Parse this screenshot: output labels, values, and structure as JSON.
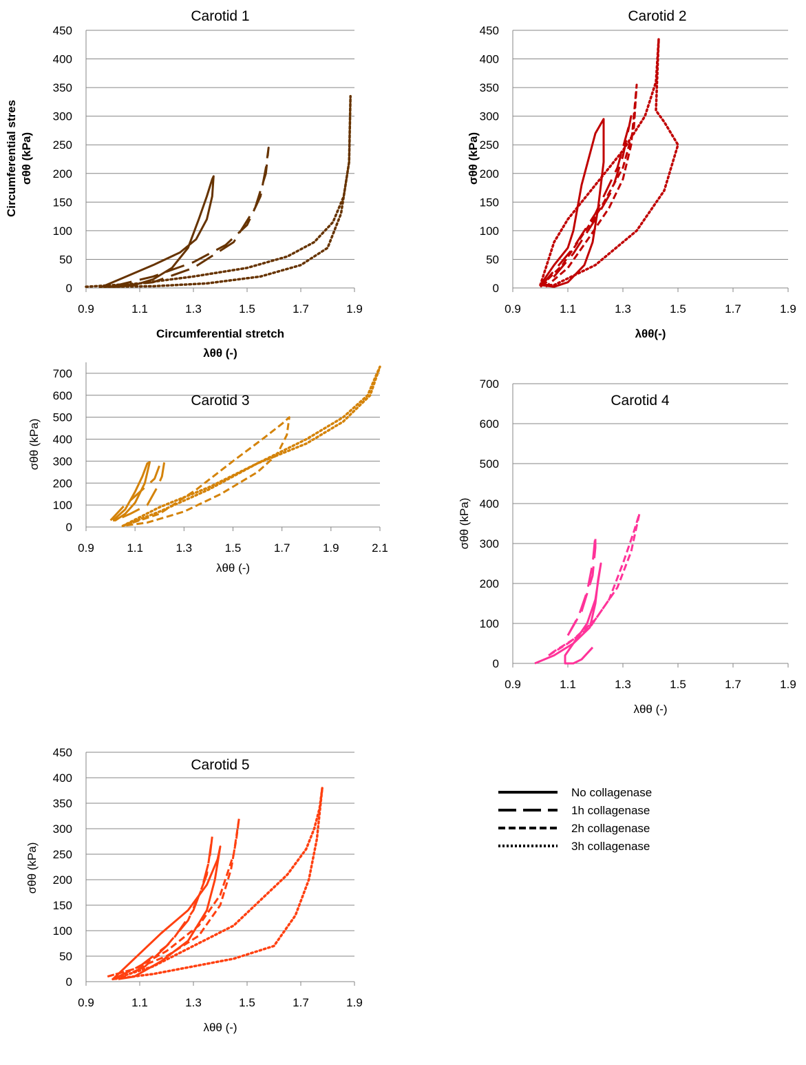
{
  "legend": {
    "entries": [
      {
        "label": "No collagenase",
        "style": "solid"
      },
      {
        "label": "1h collagenase",
        "style": "longdash"
      },
      {
        "label": "2h collagenase",
        "style": "dash"
      },
      {
        "label": "3h collagenase",
        "style": "dot"
      }
    ]
  },
  "chart_data": [
    {
      "type": "line",
      "title": "Carotid 1",
      "color": "#663300",
      "xlabel": [
        "Circumferential stretch",
        "λθθ (-)"
      ],
      "ylabel": [
        "Circumferential stres",
        "σθθ (kPa)"
      ],
      "xlim": [
        0.9,
        1.9
      ],
      "ylim": [
        0,
        450
      ],
      "xticks": [
        0.9,
        1.1,
        1.3,
        1.5,
        1.7,
        1.9
      ],
      "yticks": [
        0,
        50,
        100,
        150,
        200,
        250,
        300,
        350,
        400,
        450
      ],
      "grid": true,
      "series": [
        {
          "name": "No collagenase",
          "style": "solid",
          "x": [
            0.96,
            1.05,
            1.15,
            1.25,
            1.31,
            1.35,
            1.37,
            1.375,
            1.37,
            1.35,
            1.32,
            1.28,
            1.22,
            1.15,
            1.08,
            1.02,
            0.97
          ],
          "y": [
            2,
            20,
            40,
            62,
            85,
            120,
            160,
            195,
            190,
            160,
            120,
            70,
            35,
            15,
            5,
            2,
            2
          ]
        },
        {
          "name": "1h collagenase",
          "style": "longdash",
          "x": [
            1.0,
            1.15,
            1.3,
            1.42,
            1.5,
            1.55,
            1.57,
            1.58,
            1.57,
            1.53,
            1.45,
            1.3,
            1.15,
            1.02
          ],
          "y": [
            3,
            20,
            45,
            75,
            110,
            160,
            210,
            245,
            200,
            140,
            80,
            35,
            10,
            3
          ]
        },
        {
          "name": "3h collagenase",
          "style": "dot",
          "x": [
            0.9,
            1.1,
            1.3,
            1.5,
            1.65,
            1.75,
            1.82,
            1.86,
            1.88,
            1.885,
            1.88,
            1.85,
            1.8,
            1.7,
            1.55,
            1.35,
            1.15,
            0.95
          ],
          "y": [
            2,
            8,
            20,
            35,
            55,
            80,
            115,
            160,
            220,
            335,
            220,
            130,
            70,
            40,
            20,
            8,
            3,
            2
          ]
        }
      ]
    },
    {
      "type": "line",
      "title": "Carotid 2",
      "color": "#c00000",
      "xlabel": [
        "λθθ(-)"
      ],
      "ylabel": [
        "σθθ (kPa)"
      ],
      "xlim": [
        0.9,
        1.9
      ],
      "ylim": [
        0,
        450
      ],
      "xticks": [
        0.9,
        1.1,
        1.3,
        1.5,
        1.7,
        1.9
      ],
      "yticks": [
        0,
        50,
        100,
        150,
        200,
        250,
        300,
        350,
        400,
        450
      ],
      "grid": true,
      "series": [
        {
          "name": "No collagenase",
          "style": "solid",
          "x": [
            1.0,
            1.05,
            1.1,
            1.12,
            1.15,
            1.2,
            1.23,
            1.23,
            1.21,
            1.19,
            1.16,
            1.1,
            1.05,
            1.0
          ],
          "y": [
            5,
            40,
            70,
            100,
            180,
            270,
            295,
            220,
            140,
            80,
            40,
            10,
            2,
            5
          ]
        },
        {
          "name": "1h collagenase",
          "style": "longdash",
          "x": [
            1.0,
            1.05,
            1.12,
            1.2,
            1.28,
            1.32,
            1.33,
            1.3,
            1.26,
            1.2,
            1.12,
            1.05,
            1.0
          ],
          "y": [
            2,
            30,
            70,
            130,
            210,
            280,
            300,
            230,
            170,
            120,
            60,
            20,
            2
          ]
        },
        {
          "name": "2h collagenase",
          "style": "dash",
          "x": [
            1.0,
            1.08,
            1.15,
            1.22,
            1.3,
            1.34,
            1.35,
            1.33,
            1.3,
            1.25,
            1.18,
            1.1,
            1.02
          ],
          "y": [
            2,
            40,
            90,
            140,
            210,
            280,
            355,
            250,
            190,
            140,
            90,
            35,
            2
          ]
        },
        {
          "name": "3h collagenase",
          "style": "dot",
          "x": [
            1.0,
            1.05,
            1.1,
            1.2,
            1.3,
            1.38,
            1.42,
            1.43,
            1.42,
            1.45,
            1.5,
            1.45,
            1.35,
            1.2,
            1.05,
            1.0
          ],
          "y": [
            5,
            80,
            120,
            180,
            240,
            300,
            360,
            435,
            310,
            290,
            250,
            170,
            100,
            40,
            5,
            5
          ]
        }
      ]
    },
    {
      "type": "line",
      "title": "Carotid 3",
      "color": "#d4830a",
      "xlabel": [
        "λθθ (-)"
      ],
      "ylabel": [
        "σθθ (kPa)"
      ],
      "xlim": [
        0.9,
        2.1
      ],
      "ylim": [
        0,
        750
      ],
      "xticks": [
        0.9,
        1.1,
        1.3,
        1.5,
        1.7,
        1.9,
        2.1
      ],
      "yticks": [
        0,
        100,
        200,
        300,
        400,
        500,
        600,
        700
      ],
      "grid": true,
      "series": [
        {
          "name": "No collagenase",
          "style": "solid",
          "x": [
            1.01,
            1.06,
            1.1,
            1.13,
            1.15,
            1.16,
            1.14,
            1.1,
            1.06,
            1.02,
            1.01
          ],
          "y": [
            30,
            80,
            160,
            230,
            290,
            295,
            200,
            110,
            60,
            30,
            30
          ]
        },
        {
          "name": "1h collagenase",
          "style": "longdash",
          "x": [
            1.0,
            1.05,
            1.12,
            1.18,
            1.2,
            1.22,
            1.21,
            1.19,
            1.15,
            1.08,
            1.02
          ],
          "y": [
            30,
            90,
            160,
            220,
            280,
            300,
            230,
            180,
            100,
            60,
            30
          ]
        },
        {
          "name": "2h collagenase",
          "style": "dash",
          "x": [
            1.05,
            1.2,
            1.35,
            1.5,
            1.62,
            1.7,
            1.73,
            1.72,
            1.68,
            1.6,
            1.45,
            1.3,
            1.15,
            1.05
          ],
          "y": [
            5,
            60,
            170,
            300,
            400,
            470,
            500,
            420,
            330,
            250,
            150,
            70,
            20,
            5
          ]
        },
        {
          "name": "3h collagenase",
          "style": "dot",
          "x": [
            1.05,
            1.2,
            1.4,
            1.6,
            1.8,
            1.95,
            2.05,
            2.08,
            2.1,
            2.06,
            1.95,
            1.8,
            1.6,
            1.4,
            1.2,
            1.05
          ],
          "y": [
            5,
            90,
            180,
            290,
            400,
            500,
            600,
            680,
            730,
            600,
            480,
            380,
            290,
            170,
            70,
            5
          ]
        }
      ]
    },
    {
      "type": "line",
      "title": "Carotid 4",
      "color": "#ff3399",
      "xlabel": [
        "λθθ (-)"
      ],
      "ylabel": [
        "σθθ (kPa)"
      ],
      "xlim": [
        0.9,
        1.9
      ],
      "ylim": [
        0,
        700
      ],
      "xticks": [
        0.9,
        1.1,
        1.3,
        1.5,
        1.7,
        1.9
      ],
      "yticks": [
        0,
        100,
        200,
        300,
        400,
        500,
        600,
        700
      ],
      "grid": true,
      "series": [
        {
          "name": "No collagenase",
          "style": "solid",
          "x": [
            0.98,
            1.05,
            1.12,
            1.18,
            1.2,
            1.21,
            1.22,
            1.2,
            1.17,
            1.12,
            1.09,
            1.09,
            1.12,
            1.15,
            1.19
          ],
          "y": [
            0,
            20,
            50,
            90,
            150,
            210,
            250,
            160,
            100,
            50,
            20,
            0,
            0,
            10,
            40
          ]
        },
        {
          "name": "1h collagenase",
          "style": "longdash",
          "x": [
            1.1,
            1.15,
            1.19,
            1.2,
            1.2,
            1.19,
            1.17,
            1.14,
            1.1
          ],
          "y": [
            70,
            130,
            220,
            290,
            320,
            250,
            180,
            120,
            70
          ]
        },
        {
          "name": "2h collagenase",
          "style": "dash",
          "x": [
            1.03,
            1.1,
            1.18,
            1.25,
            1.3,
            1.34,
            1.36,
            1.33,
            1.28,
            1.2,
            1.12,
            1.05,
            1.03
          ],
          "y": [
            20,
            50,
            90,
            160,
            250,
            330,
            375,
            280,
            190,
            110,
            60,
            30,
            20
          ]
        }
      ]
    },
    {
      "type": "line",
      "title": "Carotid 5",
      "color": "#ff4010",
      "xlabel": [
        "λθθ (-)"
      ],
      "ylabel": [
        "σθθ (kPa)"
      ],
      "xlim": [
        0.9,
        1.9
      ],
      "ylim": [
        0,
        450
      ],
      "xticks": [
        0.9,
        1.1,
        1.3,
        1.5,
        1.7,
        1.9
      ],
      "yticks": [
        0,
        50,
        100,
        150,
        200,
        250,
        300,
        350,
        400,
        450
      ],
      "grid": true,
      "series": [
        {
          "name": "No collagenase",
          "style": "solid",
          "x": [
            1.0,
            1.08,
            1.18,
            1.28,
            1.35,
            1.39,
            1.4,
            1.38,
            1.35,
            1.28,
            1.18,
            1.08,
            1.02
          ],
          "y": [
            5,
            45,
            95,
            140,
            190,
            240,
            265,
            200,
            140,
            80,
            40,
            10,
            5
          ]
        },
        {
          "name": "1h collagenase",
          "style": "longdash",
          "x": [
            1.0,
            1.1,
            1.2,
            1.28,
            1.33,
            1.36,
            1.37,
            1.35,
            1.3,
            1.22,
            1.12,
            1.02
          ],
          "y": [
            5,
            30,
            70,
            120,
            180,
            240,
            285,
            210,
            140,
            80,
            30,
            5
          ]
        },
        {
          "name": "2h collagenase",
          "style": "dash",
          "x": [
            0.98,
            1.08,
            1.2,
            1.32,
            1.4,
            1.44,
            1.46,
            1.47,
            1.45,
            1.4,
            1.32,
            1.2,
            1.08,
            0.98
          ],
          "y": [
            10,
            25,
            50,
            90,
            150,
            220,
            280,
            320,
            250,
            170,
            110,
            60,
            25,
            10
          ]
        },
        {
          "name": "3h collagenase",
          "style": "dot",
          "x": [
            1.0,
            1.15,
            1.3,
            1.45,
            1.55,
            1.65,
            1.72,
            1.75,
            1.77,
            1.78,
            1.76,
            1.73,
            1.68,
            1.6,
            1.45,
            1.3,
            1.15,
            1.0
          ],
          "y": [
            5,
            30,
            70,
            110,
            160,
            210,
            260,
            300,
            340,
            380,
            280,
            200,
            130,
            70,
            45,
            30,
            15,
            5
          ]
        }
      ]
    }
  ]
}
